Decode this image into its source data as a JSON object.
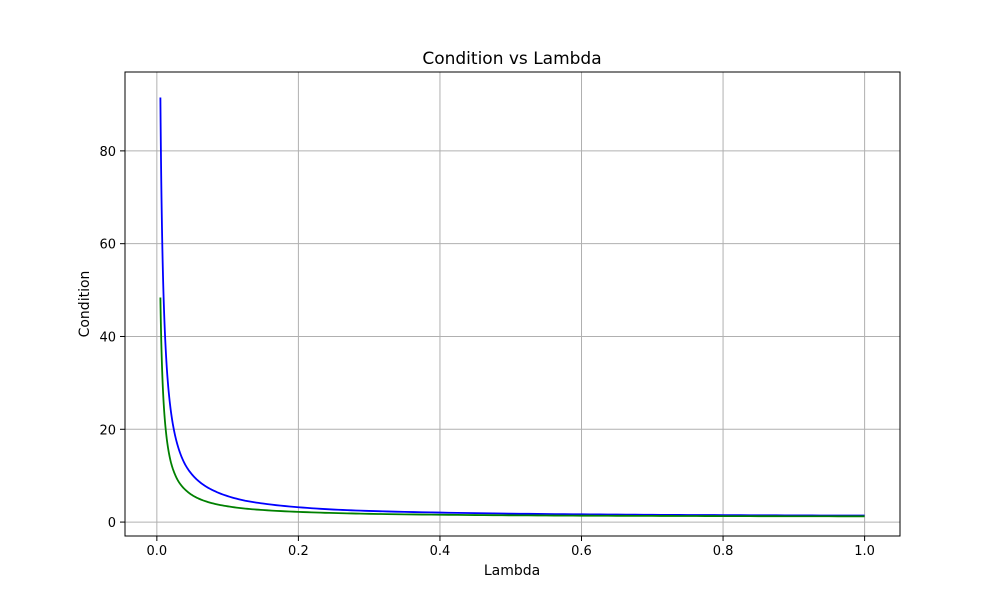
{
  "chart_data": {
    "type": "line",
    "title": "Condition vs Lambda",
    "xlabel": "Lambda",
    "ylabel": "Condition",
    "xlim": [
      -0.045,
      1.05
    ],
    "ylim": [
      -3,
      97
    ],
    "xticks": [
      0.0,
      0.2,
      0.4,
      0.6,
      0.8,
      1.0
    ],
    "xtick_labels": [
      "0.0",
      "0.2",
      "0.4",
      "0.6",
      "0.8",
      "1.0"
    ],
    "yticks": [
      0,
      20,
      40,
      60,
      80
    ],
    "ytick_labels": [
      "0",
      "20",
      "40",
      "60",
      "80"
    ],
    "grid": true,
    "legend": "none",
    "series": [
      {
        "color": "#0000ff",
        "x": [
          0.005,
          0.0075,
          0.01,
          0.0125,
          0.015,
          0.02,
          0.025,
          0.03,
          0.04,
          0.05,
          0.06,
          0.08,
          0.1,
          0.125,
          0.15,
          0.2,
          0.25,
          0.3,
          0.4,
          0.5,
          0.6,
          0.7,
          0.8,
          0.9,
          1.0
        ],
        "y": [
          91.5,
          61.3,
          46.3,
          37.3,
          31.2,
          23.7,
          19.2,
          16.2,
          12.4,
          10.2,
          8.7,
          6.8,
          5.6,
          4.6,
          4.0,
          3.2,
          2.7,
          2.4,
          2.05,
          1.82,
          1.67,
          1.57,
          1.5,
          1.44,
          1.4
        ]
      },
      {
        "color": "#008000",
        "x": [
          0.005,
          0.0075,
          0.01,
          0.0125,
          0.015,
          0.02,
          0.025,
          0.03,
          0.04,
          0.05,
          0.06,
          0.08,
          0.1,
          0.125,
          0.15,
          0.2,
          0.25,
          0.3,
          0.4,
          0.5,
          0.6,
          0.7,
          0.8,
          0.9,
          1.0
        ],
        "y": [
          48.4,
          32.6,
          24.7,
          20.0,
          16.8,
          12.8,
          10.5,
          8.9,
          7.0,
          5.8,
          5.0,
          4.0,
          3.4,
          2.9,
          2.6,
          2.2,
          1.95,
          1.78,
          1.58,
          1.46,
          1.38,
          1.33,
          1.29,
          1.26,
          1.24
        ]
      }
    ]
  }
}
